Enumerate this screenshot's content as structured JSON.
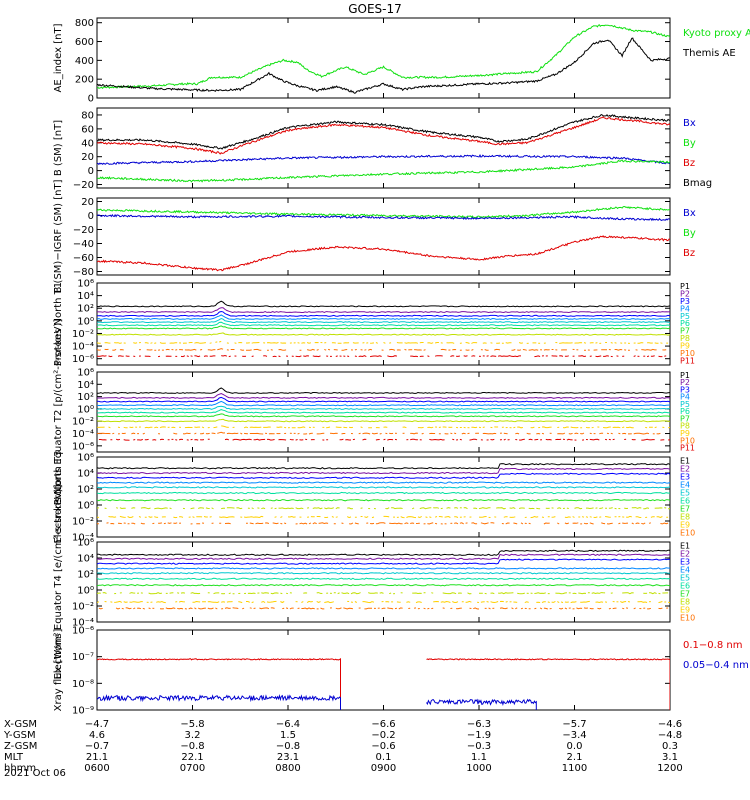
{
  "title": "GOES-17",
  "date": "2021 Oct 06",
  "colors": {
    "black": "#000000",
    "red": "#e00000",
    "green": "#10e010",
    "blue": "#0000d0",
    "p_colors": [
      "#000000",
      "#7a0fa0",
      "#0000ff",
      "#0088ff",
      "#00c8d0",
      "#00e0a0",
      "#20e020",
      "#c0e000",
      "#ffd000",
      "#ff7000",
      "#e00000"
    ]
  },
  "x_ticks": [
    "0600",
    "0700",
    "0800",
    "0900",
    "1000",
    "1100",
    "1200"
  ],
  "ephemeris": {
    "rows": [
      {
        "label": "X-GSM",
        "values": [
          "−4.7",
          "−5.8",
          "−6.4",
          "−6.6",
          "−6.3",
          "−5.7",
          "−4.6"
        ]
      },
      {
        "label": "Y-GSM",
        "values": [
          "4.6",
          "3.2",
          "1.5",
          "−0.2",
          "−1.9",
          "−3.4",
          "−4.8"
        ]
      },
      {
        "label": "Z-GSM",
        "values": [
          "−0.7",
          "−0.8",
          "−0.8",
          "−0.6",
          "−0.3",
          "0.0",
          "0.3"
        ]
      },
      {
        "label": "MLT",
        "values": [
          "21.1",
          "22.1",
          "23.1",
          "0.1",
          "1.1",
          "2.1",
          "3.1"
        ]
      },
      {
        "label": "hhmm",
        "values": [
          "0600",
          "0700",
          "0800",
          "0900",
          "1000",
          "1100",
          "1200"
        ]
      }
    ]
  },
  "chart_data": [
    {
      "type": "line",
      "ylabel": "AE_index [nT]",
      "ylim": [
        0,
        850
      ],
      "yticks": [
        "0",
        "200",
        "400",
        "600",
        "800"
      ],
      "ytick_values": [
        0,
        200,
        400,
        600,
        800
      ],
      "legend": [
        {
          "name": "Kyoto proxy AE",
          "color": "#10e010"
        },
        {
          "name": "Themis AE",
          "color": "#000000"
        }
      ],
      "series": [
        {
          "name": "Kyoto proxy AE",
          "color": "#10e010",
          "x": [
            0,
            0.3,
            0.6,
            0.9,
            1.05,
            1.2,
            1.5,
            1.8,
            1.95,
            2.1,
            2.2,
            2.35,
            2.6,
            2.8,
            3.0,
            3.2,
            3.4,
            3.6,
            3.8,
            4.0,
            4.3,
            4.6,
            4.8,
            5.0,
            5.2,
            5.35,
            5.6,
            5.8,
            6.0
          ],
          "y": [
            110,
            120,
            130,
            150,
            150,
            220,
            220,
            350,
            400,
            380,
            300,
            230,
            330,
            250,
            330,
            220,
            220,
            220,
            230,
            240,
            260,
            280,
            450,
            650,
            760,
            780,
            720,
            700,
            650
          ]
        },
        {
          "name": "Themis AE",
          "color": "#000000",
          "x": [
            0,
            0.3,
            0.6,
            0.9,
            1.2,
            1.5,
            1.8,
            1.95,
            2.1,
            2.3,
            2.5,
            2.7,
            2.8,
            3.0,
            3.2,
            3.4,
            3.6,
            3.8,
            4.0,
            4.3,
            4.6,
            4.8,
            5.0,
            5.2,
            5.35,
            5.5,
            5.6,
            5.8,
            6.0
          ],
          "y": [
            140,
            120,
            100,
            90,
            80,
            90,
            260,
            180,
            130,
            80,
            120,
            60,
            90,
            150,
            90,
            120,
            130,
            140,
            150,
            160,
            180,
            250,
            380,
            580,
            620,
            450,
            640,
            400,
            420
          ]
        }
      ]
    },
    {
      "type": "line",
      "ylabel": "B (SM) [nT]",
      "ylim": [
        -25,
        90
      ],
      "yticks": [
        "−20",
        "0",
        "20",
        "40",
        "60",
        "80"
      ],
      "ytick_values": [
        -20,
        0,
        20,
        40,
        60,
        80
      ],
      "legend": [
        {
          "name": "Bx",
          "color": "#0000d0"
        },
        {
          "name": "By",
          "color": "#10e010"
        },
        {
          "name": "Bz",
          "color": "#e00000"
        },
        {
          "name": "Bmag",
          "color": "#000000"
        }
      ],
      "series": [
        {
          "name": "Bmag",
          "color": "#000000",
          "x": [
            0,
            0.5,
            1.0,
            1.3,
            1.6,
            2.0,
            2.5,
            3.0,
            3.5,
            4.0,
            4.2,
            4.5,
            5.0,
            5.3,
            5.6,
            6.0
          ],
          "y": [
            44,
            44,
            38,
            32,
            44,
            62,
            70,
            66,
            55,
            48,
            42,
            45,
            70,
            80,
            76,
            72
          ]
        },
        {
          "name": "Bz",
          "color": "#e00000",
          "x": [
            0,
            0.5,
            1.0,
            1.3,
            1.6,
            2.0,
            2.5,
            3.0,
            3.5,
            4.0,
            4.2,
            4.5,
            5.0,
            5.3,
            5.6,
            6.0
          ],
          "y": [
            40,
            38,
            32,
            25,
            40,
            58,
            66,
            62,
            50,
            42,
            38,
            40,
            62,
            76,
            72,
            66
          ]
        },
        {
          "name": "Bx",
          "color": "#0000d0",
          "x": [
            0,
            1.0,
            2.0,
            3.0,
            4.0,
            5.0,
            5.5,
            6.0
          ],
          "y": [
            10,
            13,
            18,
            20,
            21,
            20,
            18,
            10
          ]
        },
        {
          "name": "By",
          "color": "#10e010",
          "x": [
            0,
            1.0,
            1.5,
            2.0,
            3.0,
            4.0,
            5.0,
            5.5,
            6.0
          ],
          "y": [
            -10,
            -15,
            -13,
            -10,
            -5,
            -2,
            5,
            14,
            12
          ]
        }
      ]
    },
    {
      "type": "line",
      "ylabel": "B (SM)−IGRF (SM) [nT]",
      "ylim": [
        -85,
        25
      ],
      "yticks": [
        "−80",
        "−60",
        "−40",
        "−20",
        "0",
        "20"
      ],
      "ytick_values": [
        -80,
        -60,
        -40,
        -20,
        0,
        20
      ],
      "legend": [
        {
          "name": "Bx",
          "color": "#0000d0"
        },
        {
          "name": "By",
          "color": "#10e010"
        },
        {
          "name": "Bz",
          "color": "#e00000"
        }
      ],
      "series": [
        {
          "name": "By",
          "color": "#10e010",
          "x": [
            0,
            1.0,
            2.0,
            3.0,
            4.0,
            4.5,
            5.0,
            5.5,
            6.0
          ],
          "y": [
            8,
            5,
            2,
            0,
            -2,
            0,
            5,
            12,
            8
          ]
        },
        {
          "name": "Bx",
          "color": "#0000d0",
          "x": [
            0,
            1.0,
            2.0,
            3.0,
            4.0,
            5.0,
            5.5,
            6.0
          ],
          "y": [
            0,
            -2,
            -1,
            -3,
            -4,
            -2,
            -5,
            -6
          ]
        },
        {
          "name": "Bz",
          "color": "#e00000",
          "x": [
            0,
            0.5,
            1.0,
            1.3,
            1.6,
            2.0,
            2.5,
            3.0,
            3.5,
            4.0,
            4.3,
            4.6,
            5.0,
            5.3,
            5.6,
            6.0
          ],
          "y": [
            -65,
            -68,
            -75,
            -78,
            -68,
            -52,
            -45,
            -48,
            -58,
            -63,
            -58,
            -55,
            -38,
            -30,
            -32,
            -35
          ]
        }
      ]
    },
    {
      "type": "line",
      "scale": "log",
      "ylabel": "Protons North T1",
      "ylim": [
        -7,
        6
      ],
      "yticks": [
        "10⁻⁶",
        "10⁻⁴",
        "10⁻²",
        "10⁰",
        "10²",
        "10⁴",
        "10⁶"
      ],
      "ytick_values": [
        -6,
        -4,
        -2,
        0,
        2,
        4,
        6
      ],
      "legend": [
        {
          "name": "P1"
        },
        {
          "name": "P2"
        },
        {
          "name": "P3"
        },
        {
          "name": "P4"
        },
        {
          "name": "P5"
        },
        {
          "name": "P6"
        },
        {
          "name": "P7"
        },
        {
          "name": "P8"
        },
        {
          "name": "P9"
        },
        {
          "name": "P10"
        },
        {
          "name": "P11"
        }
      ],
      "levels": [
        2.3,
        1.4,
        0.8,
        0.3,
        -0.2,
        -0.7,
        -1.2,
        -2.2,
        -3.5,
        -4.6,
        -5.6
      ]
    },
    {
      "type": "line",
      "scale": "log",
      "ylabel": "Protons Equator T2 [p/(cm²-s-sr-keV)]",
      "ylim": [
        -7,
        6
      ],
      "yticks": [
        "10⁻⁶",
        "10⁻⁴",
        "10⁻²",
        "10⁰",
        "10²",
        "10⁴",
        "10⁶"
      ],
      "ytick_values": [
        -6,
        -4,
        -2,
        0,
        2,
        4,
        6
      ],
      "legend": [
        {
          "name": "P1"
        },
        {
          "name": "P2"
        },
        {
          "name": "P3"
        },
        {
          "name": "P4"
        },
        {
          "name": "P5"
        },
        {
          "name": "P6"
        },
        {
          "name": "P7"
        },
        {
          "name": "P8"
        },
        {
          "name": "P9"
        },
        {
          "name": "P10"
        },
        {
          "name": "P11"
        }
      ],
      "levels": [
        2.6,
        1.8,
        1.2,
        0.6,
        0.0,
        -0.6,
        -1.2,
        -2.0,
        -3.0,
        -4.0,
        -5.0
      ]
    },
    {
      "type": "line",
      "scale": "log",
      "ylabel": "Electrons North T3",
      "ylim": [
        -4,
        6
      ],
      "yticks": [
        "10⁻⁴",
        "10⁻²",
        "10⁰",
        "10²",
        "10⁴",
        "10⁶"
      ],
      "ytick_values": [
        -4,
        -2,
        0,
        2,
        4,
        6
      ],
      "legend": [
        {
          "name": "E1"
        },
        {
          "name": "E2"
        },
        {
          "name": "E3"
        },
        {
          "name": "E4"
        },
        {
          "name": "E5"
        },
        {
          "name": "E6"
        },
        {
          "name": "E7"
        },
        {
          "name": "E8"
        },
        {
          "name": "E9"
        },
        {
          "name": "E10"
        }
      ],
      "levels": [
        4.6,
        4.0,
        3.4,
        2.8,
        2.2,
        1.5,
        0.6,
        -0.4,
        -1.5,
        -2.3
      ]
    },
    {
      "type": "line",
      "scale": "log",
      "ylabel": "Electrons Equator T4 [e/(cm²-s-sr-keV)]",
      "ylim": [
        -4,
        6
      ],
      "yticks": [
        "10⁻⁴",
        "10⁻²",
        "10⁰",
        "10²",
        "10⁴",
        "10⁶"
      ],
      "ytick_values": [
        -4,
        -2,
        0,
        2,
        4,
        6
      ],
      "legend": [
        {
          "name": "E1"
        },
        {
          "name": "E2"
        },
        {
          "name": "E3"
        },
        {
          "name": "E4"
        },
        {
          "name": "E5"
        },
        {
          "name": "E6"
        },
        {
          "name": "E7"
        },
        {
          "name": "E8"
        },
        {
          "name": "E9"
        },
        {
          "name": "E10"
        }
      ],
      "levels": [
        4.4,
        3.9,
        3.3,
        2.7,
        2.1,
        1.4,
        0.6,
        -0.4,
        -1.5,
        -2.3
      ]
    },
    {
      "type": "line",
      "scale": "log",
      "ylabel": "Xray flux [W/m²]",
      "ylim": [
        -9,
        -6
      ],
      "yticks": [
        "10⁻⁹",
        "10⁻⁸",
        "10⁻⁷",
        "10⁻⁶"
      ],
      "ytick_values": [
        -9,
        -8,
        -7,
        -6
      ],
      "legend": [
        {
          "name": "0.1−0.8 nm",
          "color": "#e00000"
        },
        {
          "name": "0.05−0.4 nm",
          "color": "#0000d0"
        }
      ],
      "series": [
        {
          "name": "0.1−0.8 nm",
          "color": "#e00000",
          "segments": [
            [
              0,
              2.55,
              -7.1
            ],
            [
              3.45,
              6.0,
              -7.1
            ]
          ]
        },
        {
          "name": "0.05−0.4 nm",
          "color": "#0000d0",
          "segments": [
            [
              0,
              2.55,
              -8.55
            ],
            [
              3.45,
              4.6,
              -8.7
            ]
          ]
        }
      ]
    }
  ]
}
